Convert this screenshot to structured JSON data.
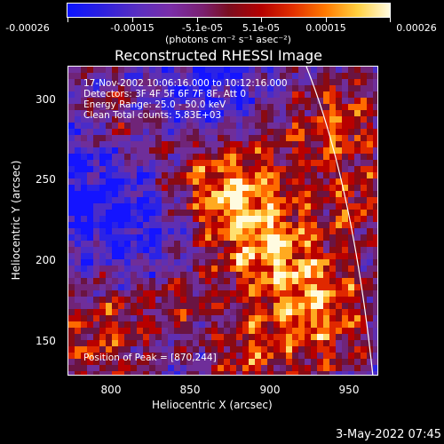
{
  "colorbar": {
    "ticks": [
      "-0.00026",
      "-0.00015",
      "-5.1e-05",
      "5.1e-05",
      "0.00015",
      "0.00026"
    ],
    "unit": "(photons cm⁻² s⁻¹ asec⁻²)",
    "min": -0.00026,
    "max": 0.00026
  },
  "plot": {
    "title": "Reconstructed RHESSI Image",
    "info": {
      "line1": "17-Nov-2002 10:06:16.000 to 10:12:16.000",
      "line2": "Detectors: 3F 4F 5F 6F 7F 8F, Att 0",
      "line3": "Energy Range: 25.0 - 50.0 keV",
      "line4": "Clean     Total counts: 5.83E+03"
    },
    "peak": "Position of Peak = [870,244]",
    "xlabel": "Heliocentric X (arcsec)",
    "ylabel": "Heliocentric Y (arcsec)",
    "xticks": [
      "800",
      "850",
      "900",
      "950"
    ],
    "yticks": [
      "300",
      "250",
      "200",
      "150"
    ],
    "xrange": [
      773,
      966
    ],
    "yrange": [
      127,
      321
    ]
  },
  "footer": {
    "date": "3-May-2022 07:45"
  },
  "colors": {
    "background": "#000000",
    "limb": "#ffffff"
  }
}
